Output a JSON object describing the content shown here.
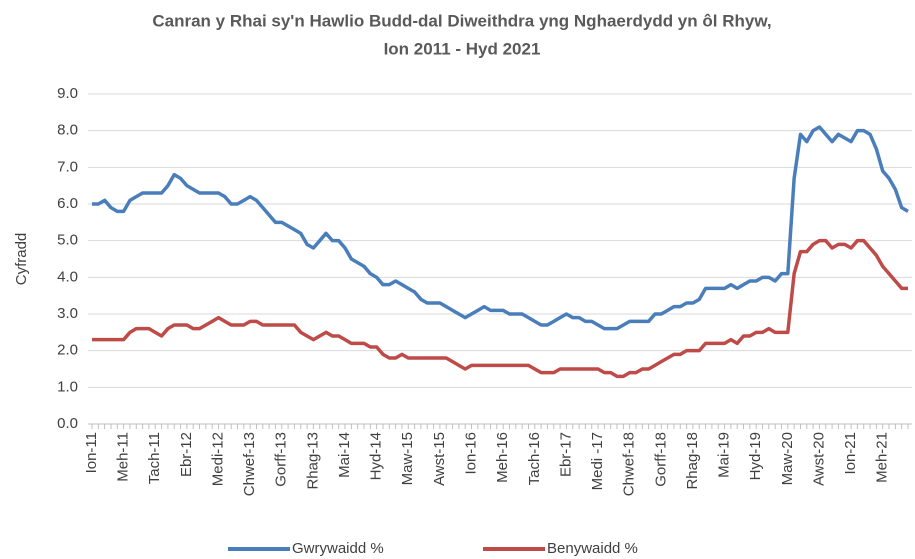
{
  "chart_data": {
    "type": "line",
    "title_lines": [
      "Canran y Rhai sy'n Hawlio Budd-dal Diweithdra yng Nghaerdydd yn ôl Rhyw,",
      "Ion 2011 - Hyd 2021"
    ],
    "y_label": "Cyfradd",
    "categories": [
      "Ion-11",
      null,
      null,
      null,
      null,
      "Meh-11",
      null,
      null,
      null,
      null,
      "Tach-11",
      null,
      null,
      null,
      null,
      "Ebr-12",
      null,
      null,
      null,
      null,
      "Medi-12",
      null,
      null,
      null,
      null,
      "Chwef-13",
      null,
      null,
      null,
      null,
      "Gorff-13",
      null,
      null,
      null,
      null,
      "Rhag-13",
      null,
      null,
      null,
      null,
      "Mai-14",
      null,
      null,
      null,
      null,
      "Hyd-14",
      null,
      null,
      null,
      null,
      "Maw-15",
      null,
      null,
      null,
      null,
      "Awst-15",
      null,
      null,
      null,
      null,
      "Ion-16",
      null,
      null,
      null,
      null,
      "Meh-16",
      null,
      null,
      null,
      null,
      "Tach-16",
      null,
      null,
      null,
      null,
      "Ebr-17",
      null,
      null,
      null,
      null,
      "Medi -17",
      null,
      null,
      null,
      null,
      "Chwef-18",
      null,
      null,
      null,
      null,
      "Gorff-18",
      null,
      null,
      null,
      null,
      "Rhag-18",
      null,
      null,
      null,
      null,
      "Mai-19",
      null,
      null,
      null,
      null,
      "Hyd-19",
      null,
      null,
      null,
      null,
      "Maw-20",
      null,
      null,
      null,
      null,
      "Awst-20",
      null,
      null,
      null,
      null,
      "Ion-21",
      null,
      null,
      null,
      null,
      "Meh-21",
      null,
      null,
      null,
      null
    ],
    "series": [
      {
        "name": "Gwrywaidd %",
        "color": "#4a7ebb",
        "values": [
          6.0,
          6.0,
          6.1,
          5.9,
          5.8,
          5.8,
          6.1,
          6.2,
          6.3,
          6.3,
          6.3,
          6.3,
          6.5,
          6.8,
          6.7,
          6.5,
          6.4,
          6.3,
          6.3,
          6.3,
          6.3,
          6.2,
          6.0,
          6.0,
          6.1,
          6.2,
          6.1,
          5.9,
          5.7,
          5.5,
          5.5,
          5.4,
          5.3,
          5.2,
          4.9,
          4.8,
          5.0,
          5.2,
          5.0,
          5.0,
          4.8,
          4.5,
          4.4,
          4.3,
          4.1,
          4.0,
          3.8,
          3.8,
          3.9,
          3.8,
          3.7,
          3.6,
          3.4,
          3.3,
          3.3,
          3.3,
          3.2,
          3.1,
          3.0,
          2.9,
          3.0,
          3.1,
          3.2,
          3.1,
          3.1,
          3.1,
          3.0,
          3.0,
          3.0,
          2.9,
          2.8,
          2.7,
          2.7,
          2.8,
          2.9,
          3.0,
          2.9,
          2.9,
          2.8,
          2.8,
          2.7,
          2.6,
          2.6,
          2.6,
          2.7,
          2.8,
          2.8,
          2.8,
          2.8,
          3.0,
          3.0,
          3.1,
          3.2,
          3.2,
          3.3,
          3.3,
          3.4,
          3.7,
          3.7,
          3.7,
          3.7,
          3.8,
          3.7,
          3.8,
          3.9,
          3.9,
          4.0,
          4.0,
          3.9,
          4.1,
          4.1,
          6.7,
          7.9,
          7.7,
          8.0,
          8.1,
          7.9,
          7.7,
          7.9,
          7.8,
          7.7,
          8.0,
          8.0,
          7.9,
          7.5,
          6.9,
          6.7,
          6.4,
          5.9,
          5.8
        ]
      },
      {
        "name": "Benywaidd %",
        "color": "#be4b48",
        "values": [
          2.3,
          2.3,
          2.3,
          2.3,
          2.3,
          2.3,
          2.5,
          2.6,
          2.6,
          2.6,
          2.5,
          2.4,
          2.6,
          2.7,
          2.7,
          2.7,
          2.6,
          2.6,
          2.7,
          2.8,
          2.9,
          2.8,
          2.7,
          2.7,
          2.7,
          2.8,
          2.8,
          2.7,
          2.7,
          2.7,
          2.7,
          2.7,
          2.7,
          2.5,
          2.4,
          2.3,
          2.4,
          2.5,
          2.4,
          2.4,
          2.3,
          2.2,
          2.2,
          2.2,
          2.1,
          2.1,
          1.9,
          1.8,
          1.8,
          1.9,
          1.8,
          1.8,
          1.8,
          1.8,
          1.8,
          1.8,
          1.8,
          1.7,
          1.6,
          1.5,
          1.6,
          1.6,
          1.6,
          1.6,
          1.6,
          1.6,
          1.6,
          1.6,
          1.6,
          1.6,
          1.5,
          1.4,
          1.4,
          1.4,
          1.5,
          1.5,
          1.5,
          1.5,
          1.5,
          1.5,
          1.5,
          1.4,
          1.4,
          1.3,
          1.3,
          1.4,
          1.4,
          1.5,
          1.5,
          1.6,
          1.7,
          1.8,
          1.9,
          1.9,
          2.0,
          2.0,
          2.0,
          2.2,
          2.2,
          2.2,
          2.2,
          2.3,
          2.2,
          2.4,
          2.4,
          2.5,
          2.5,
          2.6,
          2.5,
          2.5,
          2.5,
          4.1,
          4.7,
          4.7,
          4.9,
          5.0,
          5.0,
          4.8,
          4.9,
          4.9,
          4.8,
          5.0,
          5.0,
          4.8,
          4.6,
          4.3,
          4.1,
          3.9,
          3.7,
          3.7
        ]
      }
    ],
    "ylim": [
      0,
      9
    ],
    "yticks": [
      {
        "value": 0,
        "label": "0.0"
      },
      {
        "value": 1,
        "label": "1.0"
      },
      {
        "value": 2,
        "label": "2.0"
      },
      {
        "value": 3,
        "label": "3.0"
      },
      {
        "value": 4,
        "label": "4.0"
      },
      {
        "value": 5,
        "label": "5.0"
      },
      {
        "value": 6,
        "label": "6.0"
      },
      {
        "value": 7,
        "label": "7.0"
      },
      {
        "value": 8,
        "label": "8.0"
      },
      {
        "value": 9,
        "label": "9.0"
      }
    ],
    "grid": true,
    "legend": "bottom"
  }
}
